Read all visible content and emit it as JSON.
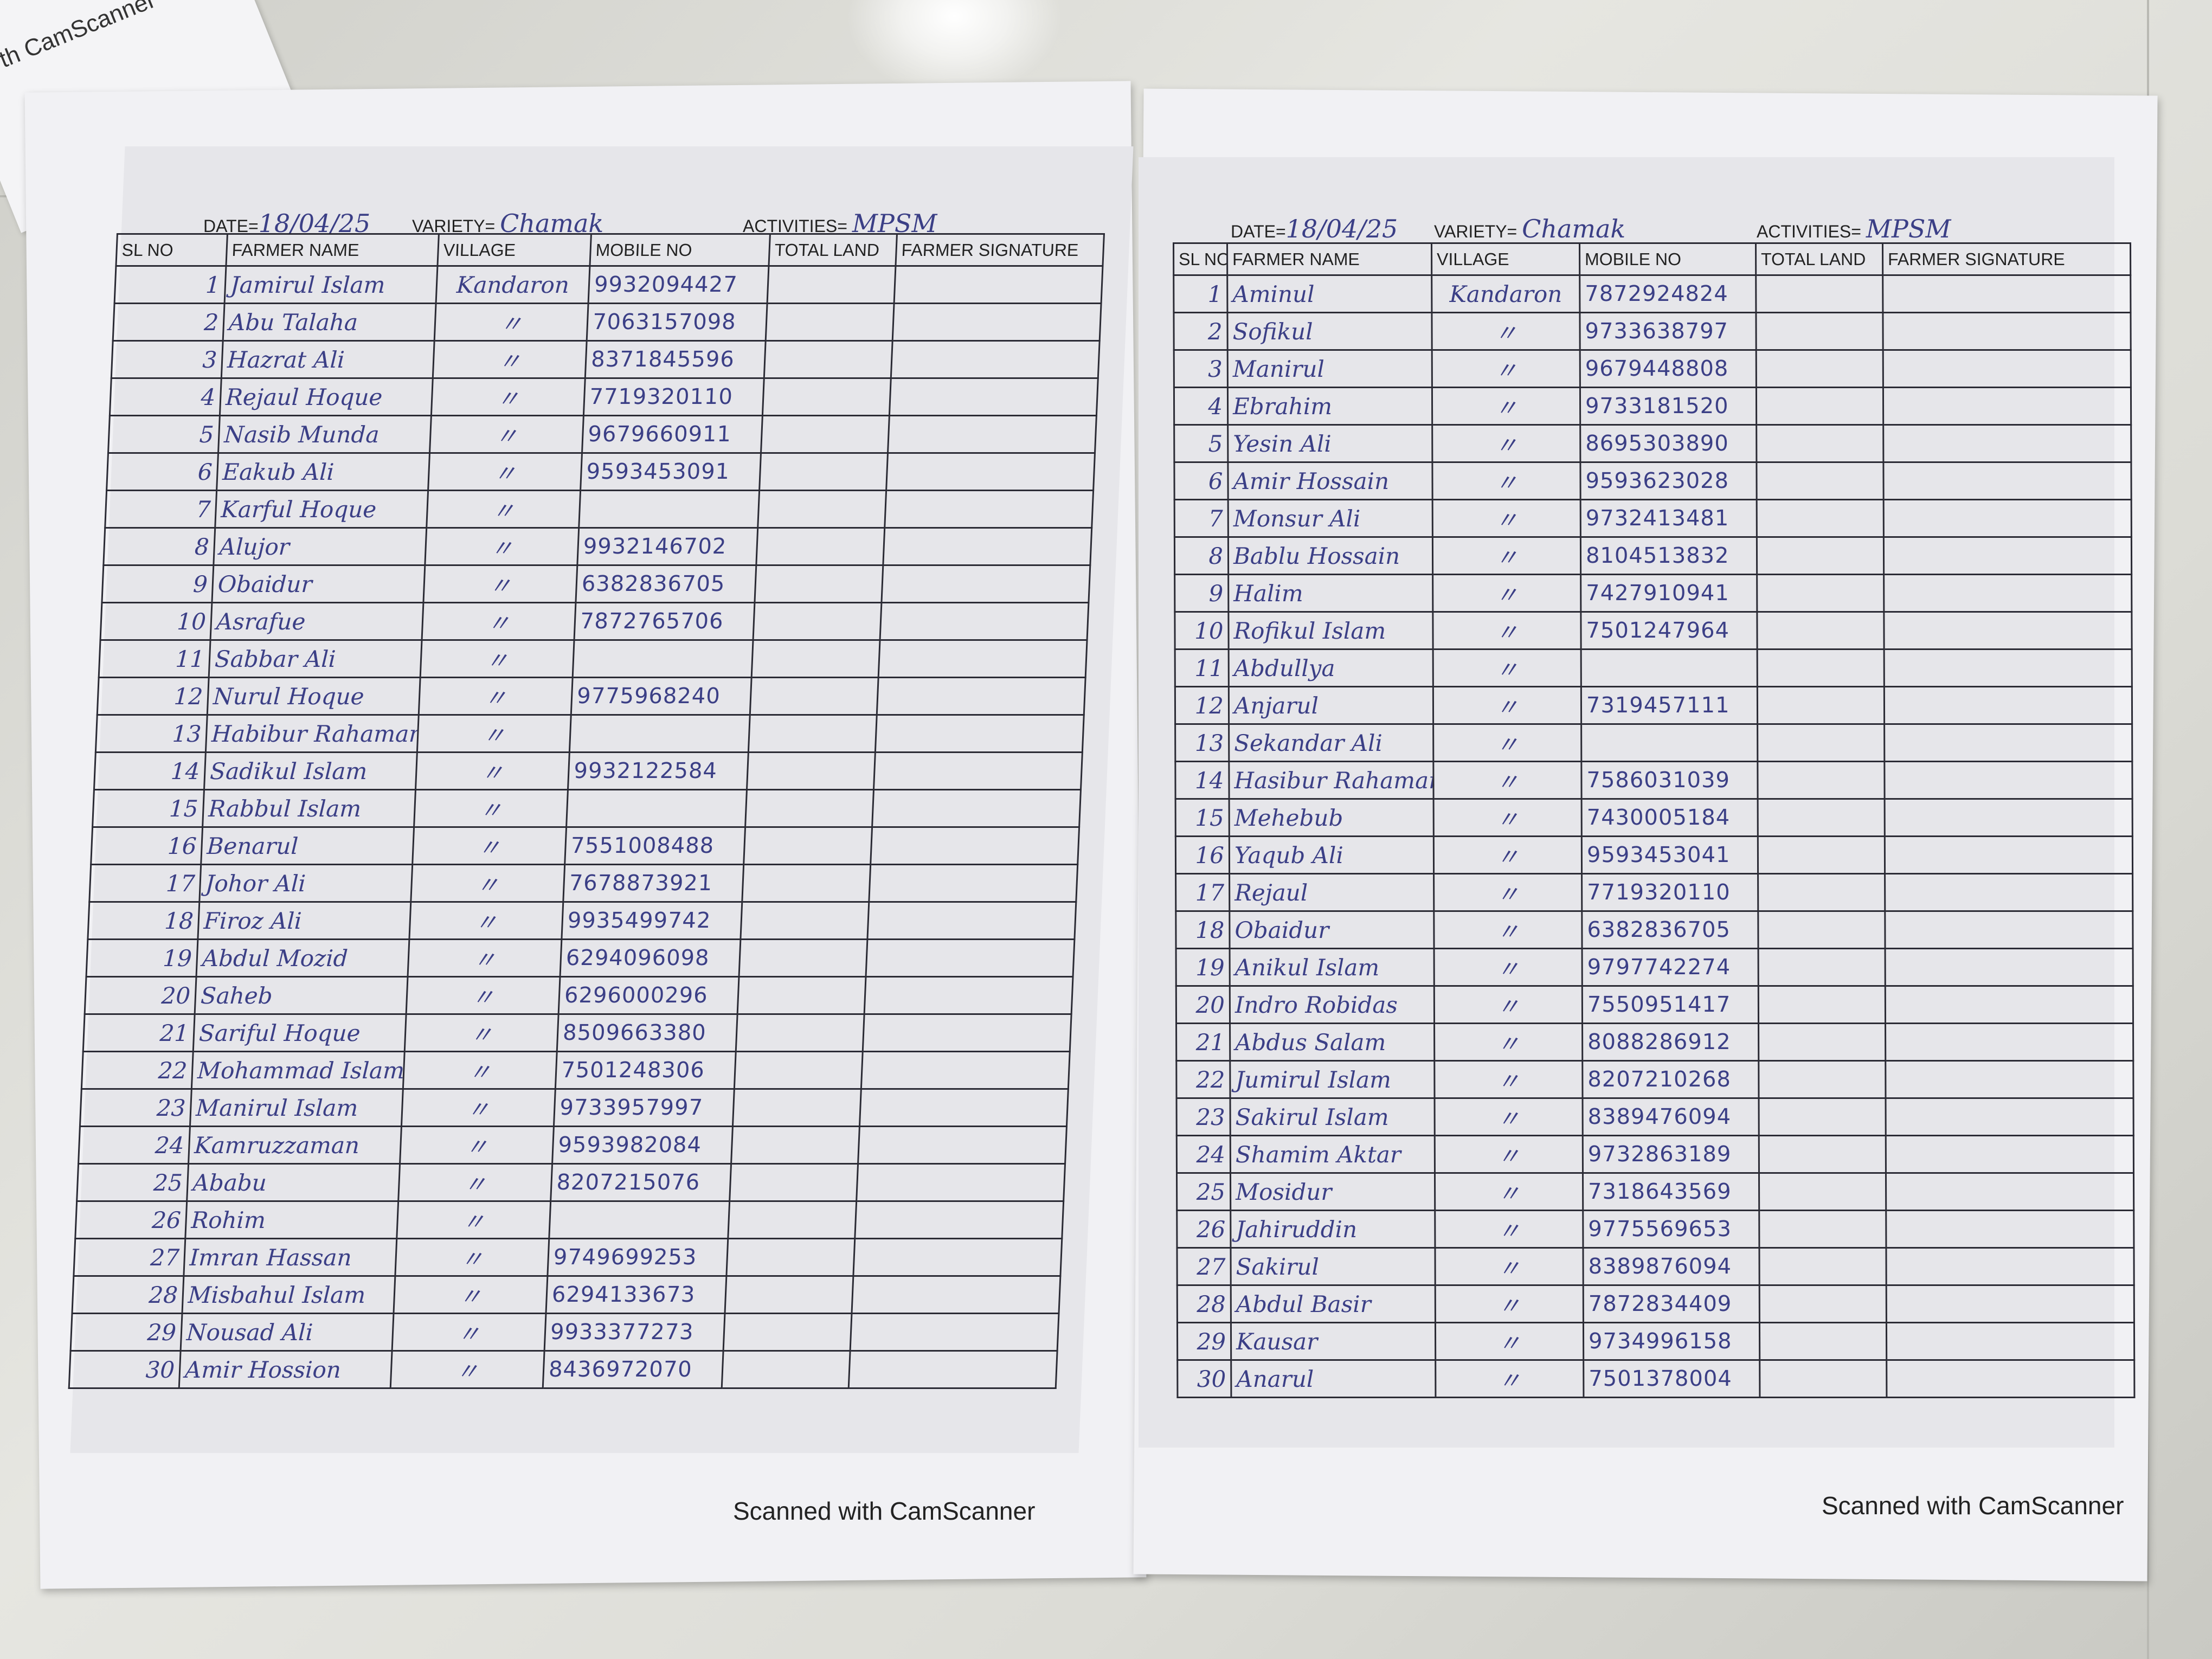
{
  "corner_paper_text": "th CamScanner",
  "sheets": [
    {
      "date_label": "DATE=",
      "date": "18/04/25",
      "variety_label": "VARIETY=",
      "variety": "Chamak",
      "activities_label": "ACTIVITIES=",
      "activities": "MPSM",
      "columns": [
        "SL NO",
        "FARMER NAME",
        "VILLAGE",
        "MOBILE NO",
        "TOTAL LAND",
        "FARMER SIGNATURE"
      ],
      "rows": [
        {
          "sl": "1",
          "name": "Jamirul Islam",
          "village": "Kandaron",
          "mobile": "9932094427"
        },
        {
          "sl": "2",
          "name": "Abu Talaha",
          "village": "〃",
          "mobile": "7063157098"
        },
        {
          "sl": "3",
          "name": "Hazrat Ali",
          "village": "〃",
          "mobile": "8371845596"
        },
        {
          "sl": "4",
          "name": "Rejaul Hoque",
          "village": "〃",
          "mobile": "7719320110"
        },
        {
          "sl": "5",
          "name": "Nasib Munda",
          "village": "〃",
          "mobile": "9679660911"
        },
        {
          "sl": "6",
          "name": "Eakub Ali",
          "village": "〃",
          "mobile": "9593453091"
        },
        {
          "sl": "7",
          "name": "Karful Hoque",
          "village": "〃",
          "mobile": ""
        },
        {
          "sl": "8",
          "name": "Alujor",
          "village": "〃",
          "mobile": "9932146702"
        },
        {
          "sl": "9",
          "name": "Obaidur",
          "village": "〃",
          "mobile": "6382836705"
        },
        {
          "sl": "10",
          "name": "Asrafue",
          "village": "〃",
          "mobile": "7872765706"
        },
        {
          "sl": "11",
          "name": "Sabbar Ali",
          "village": "〃",
          "mobile": ""
        },
        {
          "sl": "12",
          "name": "Nurul Hoque",
          "village": "〃",
          "mobile": "9775968240"
        },
        {
          "sl": "13",
          "name": "Habibur Rahaman",
          "village": "〃",
          "mobile": ""
        },
        {
          "sl": "14",
          "name": "Sadikul Islam",
          "village": "〃",
          "mobile": "9932122584"
        },
        {
          "sl": "15",
          "name": "Rabbul Islam",
          "village": "〃",
          "mobile": ""
        },
        {
          "sl": "16",
          "name": "Benarul",
          "village": "〃",
          "mobile": "7551008488"
        },
        {
          "sl": "17",
          "name": "Johor Ali",
          "village": "〃",
          "mobile": "7678873921"
        },
        {
          "sl": "18",
          "name": "Firoz Ali",
          "village": "〃",
          "mobile": "9935499742"
        },
        {
          "sl": "19",
          "name": "Abdul Mozid",
          "village": "〃",
          "mobile": "6294096098"
        },
        {
          "sl": "20",
          "name": "Saheb",
          "village": "〃",
          "mobile": "6296000296"
        },
        {
          "sl": "21",
          "name": "Sariful Hoque",
          "village": "〃",
          "mobile": "8509663380"
        },
        {
          "sl": "22",
          "name": "Mohammad Islam",
          "village": "〃",
          "mobile": "7501248306"
        },
        {
          "sl": "23",
          "name": "Manirul Islam",
          "village": "〃",
          "mobile": "9733957997"
        },
        {
          "sl": "24",
          "name": "Kamruzzaman",
          "village": "〃",
          "mobile": "9593982084"
        },
        {
          "sl": "25",
          "name": "Ababu",
          "village": "〃",
          "mobile": "8207215076"
        },
        {
          "sl": "26",
          "name": "Rohim",
          "village": "〃",
          "mobile": ""
        },
        {
          "sl": "27",
          "name": "Imran Hassan",
          "village": "〃",
          "mobile": "9749699253"
        },
        {
          "sl": "28",
          "name": "Misbahul Islam",
          "village": "〃",
          "mobile": "6294133673"
        },
        {
          "sl": "29",
          "name": "Nousad Ali",
          "village": "〃",
          "mobile": "9933377273"
        },
        {
          "sl": "30",
          "name": "Amir Hossion",
          "village": "〃",
          "mobile": "8436972070"
        }
      ],
      "footer": "Scanned with CamScanner"
    },
    {
      "date_label": "DATE=",
      "date": "18/04/25",
      "variety_label": "VARIETY=",
      "variety": "Chamak",
      "activities_label": "ACTIVITIES=",
      "activities": "MPSM",
      "columns": [
        "SL NO",
        "FARMER NAME",
        "VILLAGE",
        "MOBILE NO",
        "TOTAL LAND",
        "FARMER SIGNATURE"
      ],
      "rows": [
        {
          "sl": "1",
          "name": "Aminul",
          "village": "Kandaron",
          "mobile": "7872924824"
        },
        {
          "sl": "2",
          "name": "Sofikul",
          "village": "〃",
          "mobile": "9733638797"
        },
        {
          "sl": "3",
          "name": "Manirul",
          "village": "〃",
          "mobile": "9679448808"
        },
        {
          "sl": "4",
          "name": "Ebrahim",
          "village": "〃",
          "mobile": "9733181520"
        },
        {
          "sl": "5",
          "name": "Yesin Ali",
          "village": "〃",
          "mobile": "8695303890"
        },
        {
          "sl": "6",
          "name": "Amir Hossain",
          "village": "〃",
          "mobile": "9593623028"
        },
        {
          "sl": "7",
          "name": "Monsur Ali",
          "village": "〃",
          "mobile": "9732413481"
        },
        {
          "sl": "8",
          "name": "Bablu Hossain",
          "village": "〃",
          "mobile": "8104513832"
        },
        {
          "sl": "9",
          "name": "Halim",
          "village": "〃",
          "mobile": "7427910941"
        },
        {
          "sl": "10",
          "name": "Rofikul Islam",
          "village": "〃",
          "mobile": "7501247964"
        },
        {
          "sl": "11",
          "name": "Abdullya",
          "village": "〃",
          "mobile": ""
        },
        {
          "sl": "12",
          "name": "Anjarul",
          "village": "〃",
          "mobile": "7319457111"
        },
        {
          "sl": "13",
          "name": "Sekandar Ali",
          "village": "〃",
          "mobile": ""
        },
        {
          "sl": "14",
          "name": "Hasibur Rahaman",
          "village": "〃",
          "mobile": "7586031039"
        },
        {
          "sl": "15",
          "name": "Mehebub",
          "village": "〃",
          "mobile": "7430005184"
        },
        {
          "sl": "16",
          "name": "Yaqub Ali",
          "village": "〃",
          "mobile": "9593453041"
        },
        {
          "sl": "17",
          "name": "Rejaul",
          "village": "〃",
          "mobile": "7719320110"
        },
        {
          "sl": "18",
          "name": "Obaidur",
          "village": "〃",
          "mobile": "6382836705"
        },
        {
          "sl": "19",
          "name": "Anikul Islam",
          "village": "〃",
          "mobile": "9797742274"
        },
        {
          "sl": "20",
          "name": "Indro Robidas",
          "village": "〃",
          "mobile": "7550951417"
        },
        {
          "sl": "21",
          "name": "Abdus Salam",
          "village": "〃",
          "mobile": "8088286912"
        },
        {
          "sl": "22",
          "name": "Jumirul Islam",
          "village": "〃",
          "mobile": "8207210268"
        },
        {
          "sl": "23",
          "name": "Sakirul Islam",
          "village": "〃",
          "mobile": "8389476094"
        },
        {
          "sl": "24",
          "name": "Shamim Aktar",
          "village": "〃",
          "mobile": "9732863189"
        },
        {
          "sl": "25",
          "name": "Mosidur",
          "village": "〃",
          "mobile": "7318643569"
        },
        {
          "sl": "26",
          "name": "Jahiruddin",
          "village": "〃",
          "mobile": "9775569653"
        },
        {
          "sl": "27",
          "name": "Sakirul",
          "village": "〃",
          "mobile": "8389876094"
        },
        {
          "sl": "28",
          "name": "Abdul Basir",
          "village": "〃",
          "mobile": "7872834409"
        },
        {
          "sl": "29",
          "name": "Kausar",
          "village": "〃",
          "mobile": "9734996158"
        },
        {
          "sl": "30",
          "name": "Anarul",
          "village": "〃",
          "mobile": "7501378004"
        }
      ],
      "footer": "Scanned with CamScanner"
    }
  ]
}
